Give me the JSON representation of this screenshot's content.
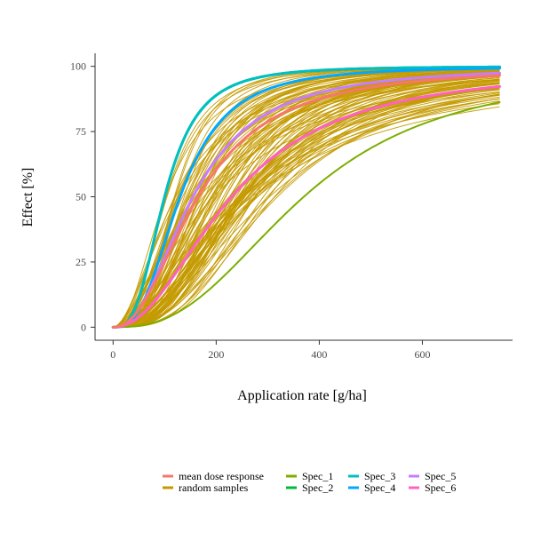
{
  "chart_data": {
    "type": "line",
    "title": "",
    "xlabel": "Application rate [g/ha]",
    "ylabel": "Effect [%]",
    "xlim": [
      -35,
      775
    ],
    "ylim": [
      -5,
      105
    ],
    "x_ticks": [
      0,
      200,
      400,
      600
    ],
    "y_ticks": [
      0,
      25,
      50,
      75,
      100
    ],
    "grid": false,
    "legend_position": "bottom",
    "x_max_curve": 750,
    "series": [
      {
        "name": "random samples",
        "color": "#C49A00",
        "kind": "random-samples",
        "count": 100,
        "ed50_range": [
          100,
          320
        ],
        "slope_range": [
          1.6,
          3.4
        ],
        "width": 1
      },
      {
        "name": "Spec_1",
        "color": "#7CAE00",
        "ed50": 370,
        "slope": 2.6,
        "width": 2
      },
      {
        "name": "Spec_2",
        "color": "#00BA38",
        "ed50": 100,
        "slope": 3.0,
        "width": 3
      },
      {
        "name": "Spec_3",
        "color": "#00BFC4",
        "ed50": 100,
        "slope": 3.0,
        "width": 3
      },
      {
        "name": "Spec_4",
        "color": "#00A9FF",
        "ed50": 130,
        "slope": 2.8,
        "width": 3
      },
      {
        "name": "Spec_5",
        "color": "#C77CFF",
        "ed50": 155,
        "slope": 2.3,
        "width": 3
      },
      {
        "name": "Spec_6",
        "color": "#FF61C3",
        "ed50": 230,
        "slope": 2.1,
        "width": 3
      },
      {
        "name": "mean dose response",
        "color": "#F8766D",
        "ed50": 165,
        "slope": 2.2,
        "width": 3
      }
    ],
    "legend": [
      {
        "label": "mean dose response",
        "color": "#F8766D"
      },
      {
        "label": "random samples",
        "color": "#C49A00"
      },
      {
        "label": "Spec_1",
        "color": "#7CAE00"
      },
      {
        "label": "Spec_2",
        "color": "#00BA38"
      },
      {
        "label": "Spec_3",
        "color": "#00BFC4"
      },
      {
        "label": "Spec_4",
        "color": "#00A9FF"
      },
      {
        "label": "Spec_5",
        "color": "#C77CFF"
      },
      {
        "label": "Spec_6",
        "color": "#FF61C3"
      }
    ]
  }
}
